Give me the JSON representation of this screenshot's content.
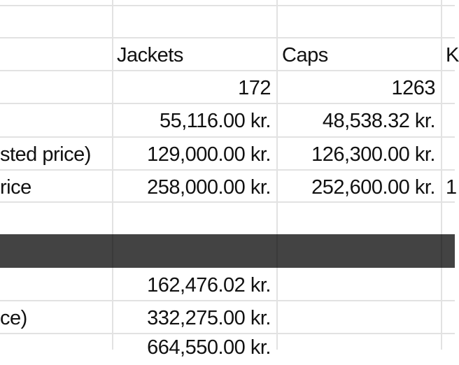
{
  "sheet": {
    "headers": {
      "col_b": "Jackets",
      "col_c": "Caps",
      "col_d": "K"
    },
    "rows": [
      {
        "label": "",
        "b": "172",
        "c": "1263",
        "d": ""
      },
      {
        "label": "",
        "b": "55,116.00 kr.",
        "c": "48,538.32 kr.",
        "d": ""
      },
      {
        "label": "sted price)",
        "b": "129,000.00 kr.",
        "c": "126,300.00 kr.",
        "d": ""
      },
      {
        "label": "rice",
        "b": "258,000.00 kr.",
        "c": "252,600.00 kr.",
        "d": "1"
      }
    ],
    "summary_rows": [
      {
        "label": "",
        "b": "162,476.02 kr."
      },
      {
        "label": "ce)",
        "b": "332,275.00 kr."
      },
      {
        "label": "",
        "b": "664,550.00 kr."
      }
    ],
    "band_color": "#434343"
  }
}
